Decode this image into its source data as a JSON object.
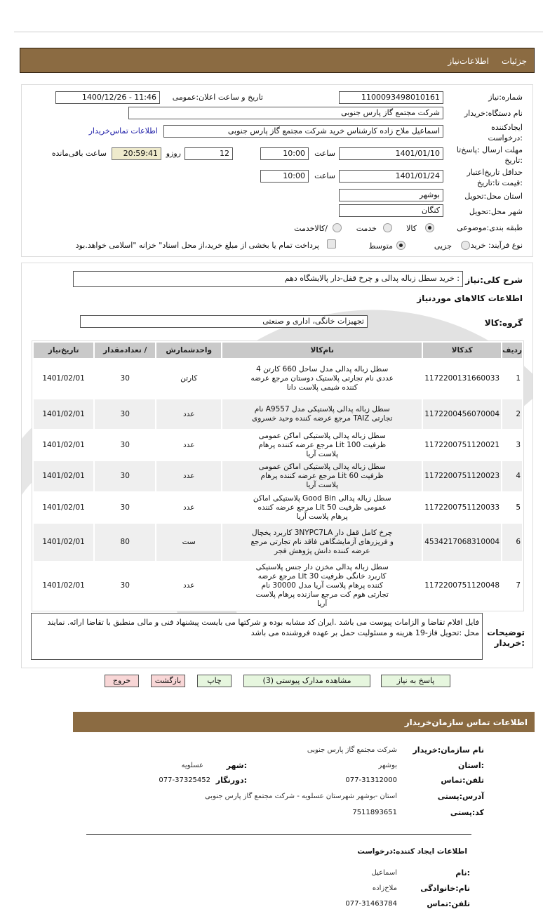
{
  "header": {
    "tab_details": "جزئیات",
    "tab_need_info": "اطلاعات‌نیاز"
  },
  "form": {
    "need_number_label": "شماره:نیاز",
    "need_number": "1100093498010161",
    "announce_label": "تاریخ و ساعت اعلان:عمومی",
    "announce_value": "1400/12/26 - 11:46",
    "buyer_org_label": "نام دستگاه:خریدار",
    "buyer_org": "شرکت مجتمع گاز پارس جنوبی",
    "creator_label_1": "ایجادکننده",
    "creator_label_2": ":درخواست",
    "creator": "اسماعیل  ملاح زاده کارشناس خرید شرکت مجتمع گاز پارس جنوبی",
    "buyer_contact_link": "اطلاعات تماس‌خریدار",
    "deadline_label_1": "مهلت ارسال :پاسخ‌تا",
    "deadline_label_2": ":تاریخ",
    "deadline_date": "1401/01/10",
    "time_label": "ساعت",
    "deadline_time": "10:00",
    "days": "12",
    "days_label": "روزو",
    "remaining": "20:59:41",
    "remaining_label": "ساعت باقی‌مانده",
    "validity_label_1": "حداقل تاریخ‌اعتبار",
    "validity_label_2": ":قیمت تا:تاریخ",
    "validity_date": "1401/01/24",
    "validity_time": "10:00",
    "province_label": "استان محل:تحویل",
    "province": "بوشهر",
    "city_label": "شهر محل:تحویل",
    "city": "کنگان",
    "category_label": "طبقه بندی:موضوعی",
    "category_options": [
      "کالا",
      "خدمت",
      "/کالاخدمت"
    ],
    "category_selected": "کالا",
    "process_label": "نوع فرآیند: خرید",
    "process_options": [
      "جزیی",
      "متوسط"
    ],
    "process_selected": "متوسط",
    "treasury_text": "پرداخت تمام یا بخشی از مبلغ خرید،از محل اسناد\" خزانه \"اسلامی خواهد.بود",
    "treasury_checked": false
  },
  "summary": {
    "label": "شرح کلی:نیاز",
    "value": ": خرید سطل زباله پدالی و چرخ قفل-دار پالایشگاه دهم",
    "goods_info_title": "اطلاعات کالاهای موردنیاز",
    "group_label": "گروه:کالا",
    "group_value": "تجهیزات خانگی، اداری و صنعتی"
  },
  "table": {
    "headers": [
      "ردیف",
      "کدکالا",
      "نام‌کالا",
      "واحدشمارش",
      "/ تعدادمقدار",
      "تاریخ‌نیاز"
    ],
    "rows": [
      [
        "1",
        "1172200131660033",
        "سطل زباله پدالی مدل ساحل 660 کارتن 4 عددی نام تجارتی پلاستیک دوستان مرجع عرضه کننده شیمی پلاست دانا",
        "کارتن",
        "30",
        "1401/02/01"
      ],
      [
        "2",
        "1172200456070004",
        "سطل زباله پدالی پلاستیکی مدل A9557 نام تجارتی TAIZ مرجع عرضه کننده وحید خسروی",
        "عدد",
        "30",
        "1401/02/01"
      ],
      [
        "3",
        "1172200751120021",
        "سطل زباله پدالی پلاستیکی اماکن عمومی ظرفیت 100 Lit مرجع عرضه کننده پرهام پلاست آریا",
        "عدد",
        "30",
        "1401/02/01"
      ],
      [
        "4",
        "1172200751120023",
        "سطل زباله پدالی پلاستیکی اماکن عمومی ظرفیت 60 Lit مرجع عرضه کننده پرهام پلاست آریا",
        "عدد",
        "30",
        "1401/02/01"
      ],
      [
        "5",
        "1172200751120033",
        "سطل زباله پدالی Good Bin پلاستیکی اماکن عمومی ظرفیت 50 Lit مرجع عرضه کننده پرهام پلاست آریا",
        "عدد",
        "30",
        "1401/02/01"
      ],
      [
        "6",
        "4534217068310004",
        "چرخ کامل قفل دار 3NYPC7LA کاربرد یخچال و فریزرهای آزمایشگاهی فاقد نام تجارتی مرجع عرضه کننده دانش پژوهش فجر",
        "ست",
        "80",
        "1401/02/01"
      ],
      [
        "7",
        "1172200751120048",
        "سطل زباله پدالی مخزن دار جنس پلاستیکی کاربرد خانگی ظرفیت 30 Lit مرجع عرضه کننده پرهام پلاست آریا مدل 30000 نام تجارتی هوم کت مرجع سازنده پرهام پلاست آریا",
        "عدد",
        "30",
        "1401/02/01"
      ]
    ]
  },
  "notes": {
    "label_1": "توضیحات",
    "label_2": ":خریدار",
    "line_1": "فایل اقلام تقاضا و الزامات پیوست می باشد .ایران کد مشابه بوده و شرکتها می بایست پیشنهاد فنی و مالی منطبق با تقاضا ارائه. نمایند",
    "line_2": "محل :تحویل فاز-19 هزینه و مسئولیت حمل بر عهده فروشنده می باشد"
  },
  "buttons": {
    "reply": "پاسخ به نیاز",
    "attachments": "مشاهده مدارک پیوستی (3)",
    "print": "چاپ",
    "back": "بازگشت",
    "exit": "خروج"
  },
  "contact": {
    "title": "اطلاعات  تماس سازمان‌خریدار",
    "org_label": "نام سازمان:خریدار",
    "org": "شرکت مجتمع گاز پارس جنوبی",
    "province_label": ":استان",
    "province": "بوشهر",
    "city_label": ":شهر",
    "city": "عسلویه",
    "phone_label": "تلفن:تماس",
    "phone": "077-31312000",
    "fax_label": ":دورنگار",
    "fax": "077-37325452",
    "address_label": "آدرس:پستی",
    "address": "استان -بوشهر شهرستان عسلویه - شرکت مجتمع گاز پارس جنوبی",
    "postal_label": "کد:پستی",
    "postal": "7511893651",
    "creator_title": "اطلاعات ایجاد کننده:درخواست",
    "name_label": ":نام",
    "name": "اسماعیل",
    "family_label": "نام:خانوادگی",
    "family": "ملاح‌زاده",
    "creator_phone_label": "تلفن:تماس",
    "creator_phone": "077-31463784"
  },
  "colors": {
    "brand_brown": "#8b6b42",
    "remaining_bg": "#eeeacc",
    "button_green": "#e6f6de",
    "button_red": "#f8d6d6",
    "link": "#1a1aa6"
  }
}
